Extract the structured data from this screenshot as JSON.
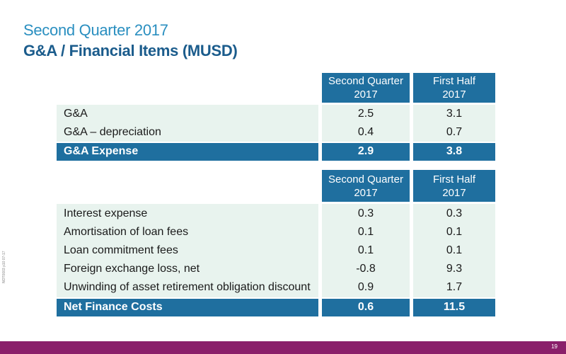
{
  "header": {
    "subtitle": "Second Quarter 2017",
    "title": "G&A / Financial Items (MUSD)"
  },
  "table1": {
    "columns": [
      {
        "line1": "Second Quarter",
        "line2": "2017"
      },
      {
        "line1": "First Half",
        "line2": "2017"
      }
    ],
    "rows": [
      {
        "label": "G&A",
        "v1": "2.5",
        "v2": "3.1"
      },
      {
        "label": "G&A – depreciation",
        "v1": "0.4",
        "v2": "0.7"
      }
    ],
    "total": {
      "label": "G&A Expense",
      "v1": "2.9",
      "v2": "3.8"
    }
  },
  "table2": {
    "columns": [
      {
        "line1": "Second Quarter",
        "line2": "2017"
      },
      {
        "line1": "First Half",
        "line2": "2017"
      }
    ],
    "rows": [
      {
        "label": "Interest expense",
        "v1": "0.3",
        "v2": "0.3"
      },
      {
        "label": "Amortisation of loan fees",
        "v1": "0.1",
        "v2": "0.1"
      },
      {
        "label": "Loan commitment fees",
        "v1": "0.1",
        "v2": "0.1"
      },
      {
        "label": "Foreign exchange loss, net",
        "v1": "-0.8",
        "v2": "9.3"
      },
      {
        "label": "Unwinding of asset retirement obligation discount",
        "v1": "0.9",
        "v2": "1.7"
      }
    ],
    "total": {
      "label": "Net Finance Costs",
      "v1": "0.6",
      "v2": "11.5"
    }
  },
  "side_text": "NOT0003  p10  07-17",
  "page_number": "19",
  "colors": {
    "accent_light": "#2a8fc0",
    "accent_dark": "#1b5c8c",
    "header_fill": "#1f6f9f",
    "row_band": "#e8f3ee",
    "footer_bar": "#8a1f6a"
  }
}
